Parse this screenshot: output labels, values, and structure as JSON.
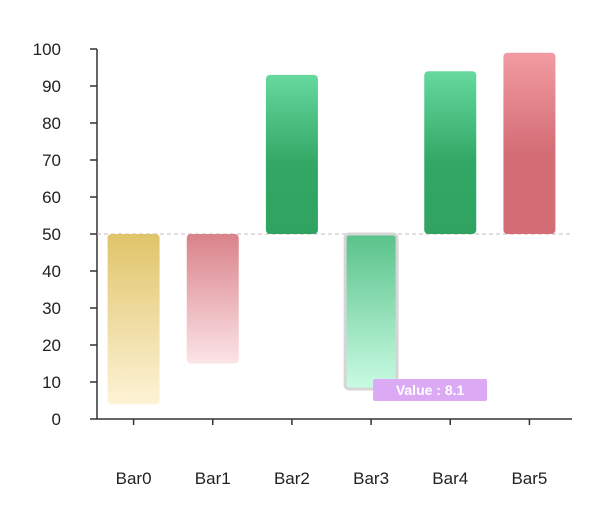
{
  "chart_data": {
    "type": "bar",
    "subtype": "floating-bars-from-baseline",
    "categories": [
      "Bar0",
      "Bar1",
      "Bar2",
      "Bar3",
      "Bar4",
      "Bar5"
    ],
    "baseline": 50,
    "values": [
      4,
      15,
      93,
      8.1,
      94,
      99
    ],
    "ylim": [
      0,
      100
    ],
    "yticks": [
      0,
      10,
      20,
      30,
      40,
      50,
      60,
      70,
      80,
      90,
      100
    ],
    "grid": false,
    "bar_gradients": [
      {
        "top": "#e0c46a",
        "bottom": "#fdf3d6"
      },
      {
        "top": "#d98289",
        "bottom": "#fbe4e7"
      },
      {
        "top": "#66d99e",
        "mid": "#33a866",
        "bottom": "#2fa35f"
      },
      {
        "top": "#59c28a",
        "bottom": "#c9fbe3"
      },
      {
        "top": "#66d99e",
        "mid": "#33a866",
        "bottom": "#2fa35f"
      },
      {
        "top": "#f29ba2",
        "mid": "#d46d76",
        "bottom": "#d46d76"
      }
    ],
    "highlighted_index": 3,
    "tooltip": {
      "text": "Value : 8.1",
      "color": "#dcaaf5"
    }
  }
}
